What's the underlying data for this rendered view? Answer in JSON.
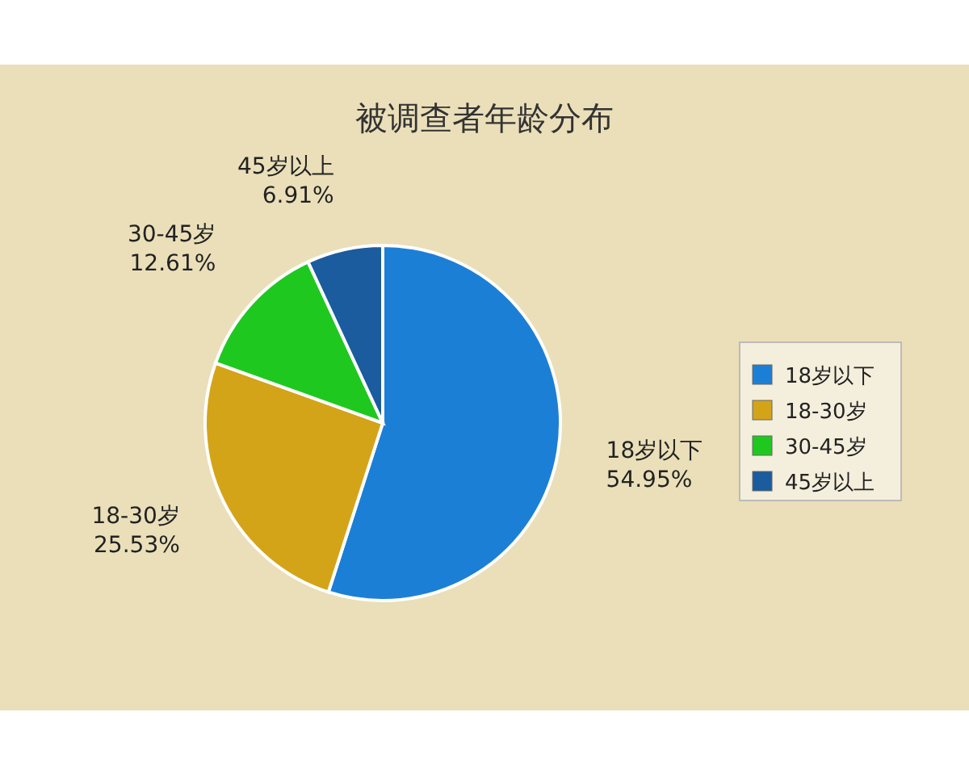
{
  "chart_data": {
    "type": "pie",
    "title": "被调查者年龄分布",
    "categories": [
      "18岁以下",
      "18-30岁",
      "30-45岁",
      "45岁以上"
    ],
    "values": [
      54.95,
      25.53,
      12.61,
      6.91
    ],
    "value_labels": [
      "54.95%",
      "25.53%",
      "12.61%",
      "6.91%"
    ],
    "colors": [
      "#1c7fd6",
      "#d4a418",
      "#1fc81f",
      "#1a5c9e"
    ],
    "legend": "right"
  }
}
